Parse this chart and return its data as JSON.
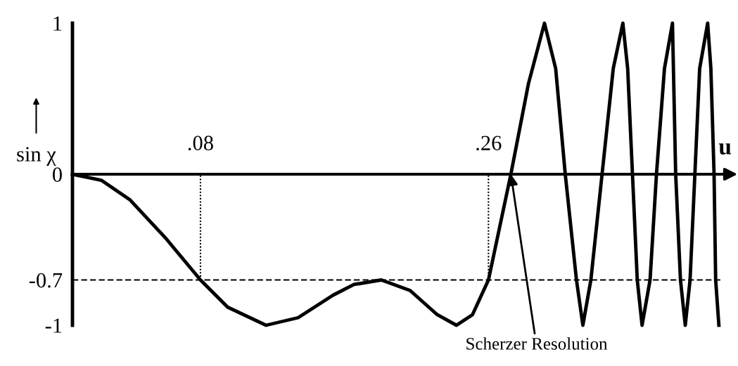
{
  "chart_data": {
    "type": "line",
    "xlabel": "u",
    "ylabel": "sin χ",
    "xlim": [
      0,
      0.412
    ],
    "ylim": [
      -1,
      1
    ],
    "xticks": [
      {
        "value": 0.08,
        "label": ".08"
      },
      {
        "value": 0.26,
        "label": ".26"
      }
    ],
    "yticks": [
      1,
      0,
      -0.7,
      -1
    ],
    "series": [
      {
        "color": "#000000",
        "line_style": "solid",
        "x": [
          0,
          0.018,
          0.036,
          0.058,
          0.08,
          0.097,
          0.121,
          0.141,
          0.163,
          0.176,
          0.193,
          0.211,
          0.228,
          0.24,
          0.25,
          0.26,
          0.267,
          0.274,
          0.285,
          0.295,
          0.302,
          0.308,
          0.315,
          0.319,
          0.324,
          0.331,
          0.338,
          0.344,
          0.347,
          0.35,
          0.353,
          0.356,
          0.361,
          0.365,
          0.37,
          0.375,
          0.377,
          0.38,
          0.383,
          0.386,
          0.389,
          0.392,
          0.397,
          0.399,
          0.401,
          0.402,
          0.404
        ],
        "values": [
          0,
          -0.04,
          -0.17,
          -0.42,
          -0.7,
          -0.88,
          -1,
          -0.95,
          -0.8,
          -0.73,
          -0.7,
          -0.77,
          -0.93,
          -1,
          -0.93,
          -0.7,
          -0.35,
          0,
          0.6,
          1,
          0.7,
          0,
          -0.7,
          -1,
          -0.7,
          0,
          0.7,
          1,
          0.7,
          0,
          -0.7,
          -1,
          -0.7,
          0,
          0.7,
          1,
          0,
          -0.7,
          -1,
          -0.7,
          0,
          0.7,
          1,
          0.7,
          0,
          -0.7,
          -1
        ]
      }
    ],
    "ref_lines": [
      {
        "axis": "y",
        "value": -0.7,
        "line_style": "dashed",
        "color": "#000000"
      },
      {
        "axis": "x",
        "value": 0.08,
        "line_style": "dotted",
        "color": "#000000"
      },
      {
        "axis": "x",
        "value": 0.26,
        "line_style": "dotted",
        "color": "#000000"
      }
    ],
    "annotations": [
      {
        "text": "Scherzer Resolution",
        "x": 0.274,
        "y": 0
      }
    ],
    "grid": false
  }
}
